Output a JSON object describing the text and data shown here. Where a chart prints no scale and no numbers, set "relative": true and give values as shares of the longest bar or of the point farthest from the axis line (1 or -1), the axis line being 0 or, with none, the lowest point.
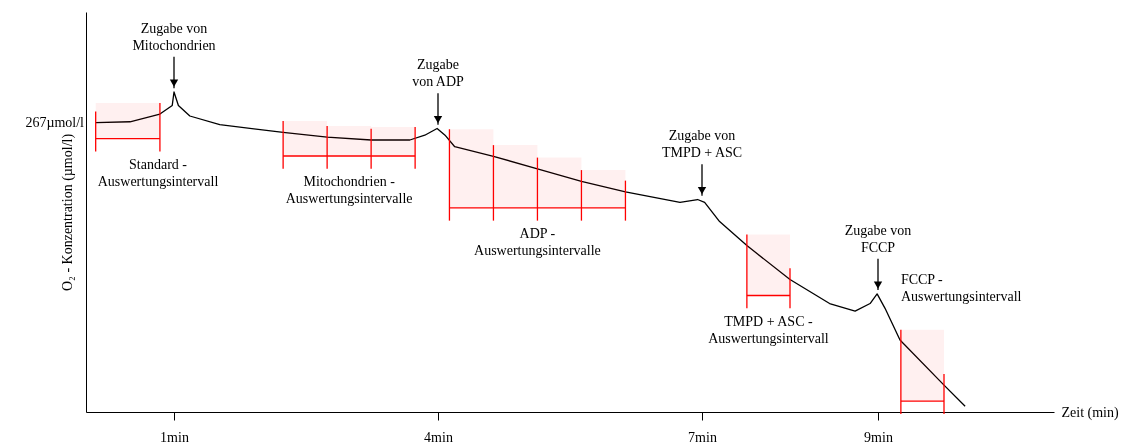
{
  "chart_data": {
    "type": "line",
    "relative": true,
    "xlabel": "Zeit (min)",
    "ylabel": "O₂ - Konzentration (µmol/l)",
    "xlim": [
      0,
      11
    ],
    "xticks": [
      {
        "value": 1,
        "label": "1min"
      },
      {
        "value": 4,
        "label": "4min"
      },
      {
        "value": 7,
        "label": "7min"
      },
      {
        "value": 9,
        "label": "9min"
      }
    ],
    "grid": false,
    "marker": "none",
    "line_style": "solid",
    "series": [
      {
        "color": "#000000",
        "x": [
          0.11,
          0.5,
          0.84,
          0.98,
          1.0,
          1.05,
          1.18,
          1.52,
          2.24,
          2.74,
          3.24,
          3.68,
          3.85,
          3.99,
          4.08,
          4.19,
          4.63,
          5.13,
          5.63,
          6.13,
          6.75,
          6.95,
          7.03,
          7.2,
          7.51,
          8.0,
          8.45,
          8.74,
          8.91,
          8.99,
          9.08,
          9.25,
          9.75,
          9.99
        ],
        "values": [
          0.904,
          0.907,
          0.931,
          0.958,
          1.0,
          0.958,
          0.925,
          0.898,
          0.874,
          0.859,
          0.85,
          0.85,
          0.865,
          0.886,
          0.865,
          0.829,
          0.799,
          0.76,
          0.721,
          0.688,
          0.655,
          0.664,
          0.655,
          0.595,
          0.52,
          0.414,
          0.339,
          0.315,
          0.339,
          0.369,
          0.324,
          0.225,
          0.084,
          0.018
        ]
      }
    ],
    "annotations": [
      "267µmol/l",
      {
        "text": "Zugabe von\nMitochondrien",
        "x": 1,
        "y": 1.0
      },
      {
        "text": "Zugabe\nvon ADP",
        "x": 4,
        "y": 0.886
      },
      {
        "text": "Zugabe von\nTMPD + ASC",
        "x": 7,
        "y": 0.664
      },
      {
        "text": "Zugabe von\nFCCP",
        "x": 9,
        "y": 0.369
      }
    ],
    "bands": [
      {
        "axis": "x",
        "from": 0.11,
        "to": 0.84,
        "label": "Standard -\nAuswertungsintervall",
        "color": "#ff0000"
      },
      {
        "axis": "x",
        "from": 2.24,
        "to": 2.74,
        "label": "Mitochondrien -\nAuswertungsintervalle",
        "color": "#ff0000"
      },
      {
        "axis": "x",
        "from": 2.74,
        "to": 3.24,
        "label": null,
        "color": "#ff0000"
      },
      {
        "axis": "x",
        "from": 3.24,
        "to": 3.74,
        "label": null,
        "color": "#ff0000"
      },
      {
        "axis": "x",
        "from": 4.13,
        "to": 4.63,
        "label": "ADP -\nAuswertungsintervalle",
        "color": "#ff0000"
      },
      {
        "axis": "x",
        "from": 4.63,
        "to": 5.13,
        "label": null,
        "color": "#ff0000"
      },
      {
        "axis": "x",
        "from": 5.13,
        "to": 5.63,
        "label": null,
        "color": "#ff0000"
      },
      {
        "axis": "x",
        "from": 5.63,
        "to": 6.13,
        "label": null,
        "color": "#ff0000"
      },
      {
        "axis": "x",
        "from": 7.51,
        "to": 8.0,
        "label": "TMPD + ASC -\nAuswertungsintervall",
        "color": "#ff0000"
      },
      {
        "axis": "x",
        "from": 9.26,
        "to": 9.75,
        "label": "FCCP -\nAuswertungsintervall",
        "color": "#ff0000"
      }
    ]
  }
}
